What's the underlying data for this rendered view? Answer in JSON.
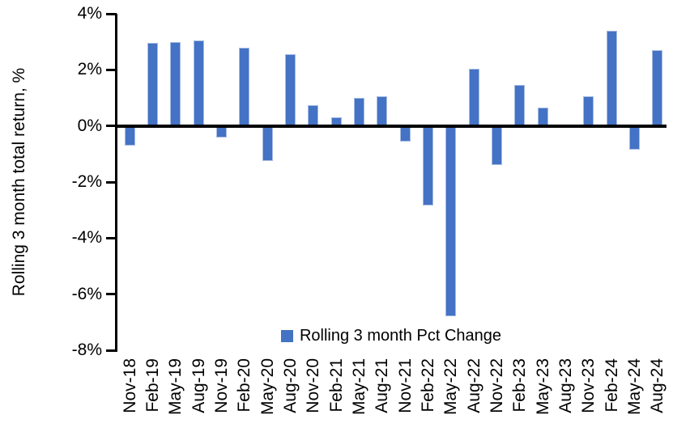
{
  "chart_data": {
    "type": "bar",
    "title": "",
    "xlabel": "",
    "ylabel": "Rolling 3 month total return, %",
    "legend": [
      "Rolling 3 month Pct Change"
    ],
    "legend_position": "bottom-center",
    "grid": false,
    "categories": [
      "Nov-18",
      "Feb-19",
      "May-19",
      "Aug-19",
      "Nov-19",
      "Feb-20",
      "May-20",
      "Aug-20",
      "Nov-20",
      "Feb-21",
      "May-21",
      "Aug-21",
      "Nov-21",
      "Feb-22",
      "May-22",
      "Aug-22",
      "Nov-22",
      "Feb-23",
      "May-23",
      "Aug-23",
      "Nov-23",
      "Feb-24",
      "May-24",
      "Aug-24"
    ],
    "values": [
      -0.7,
      2.95,
      3.0,
      3.05,
      -0.4,
      2.8,
      -1.25,
      2.55,
      0.75,
      0.3,
      1.0,
      1.05,
      -0.55,
      -2.85,
      -6.8,
      2.05,
      -1.4,
      1.45,
      0.65,
      0.0,
      1.05,
      3.4,
      -0.85,
      2.7
    ],
    "ylim": [
      -8,
      4
    ],
    "ytick_step": 2,
    "yticks": [
      4,
      2,
      0,
      -2,
      -4,
      -6,
      -8
    ],
    "ytick_labels": [
      "4%",
      "2%",
      "0%",
      "-2%",
      "-4%",
      "-6%",
      "-8%"
    ],
    "colors": {
      "bar": "#4472C4",
      "bar_edge": "#a6bbe4",
      "axis": "#000000",
      "text": "#000000",
      "background": "#ffffff"
    }
  }
}
